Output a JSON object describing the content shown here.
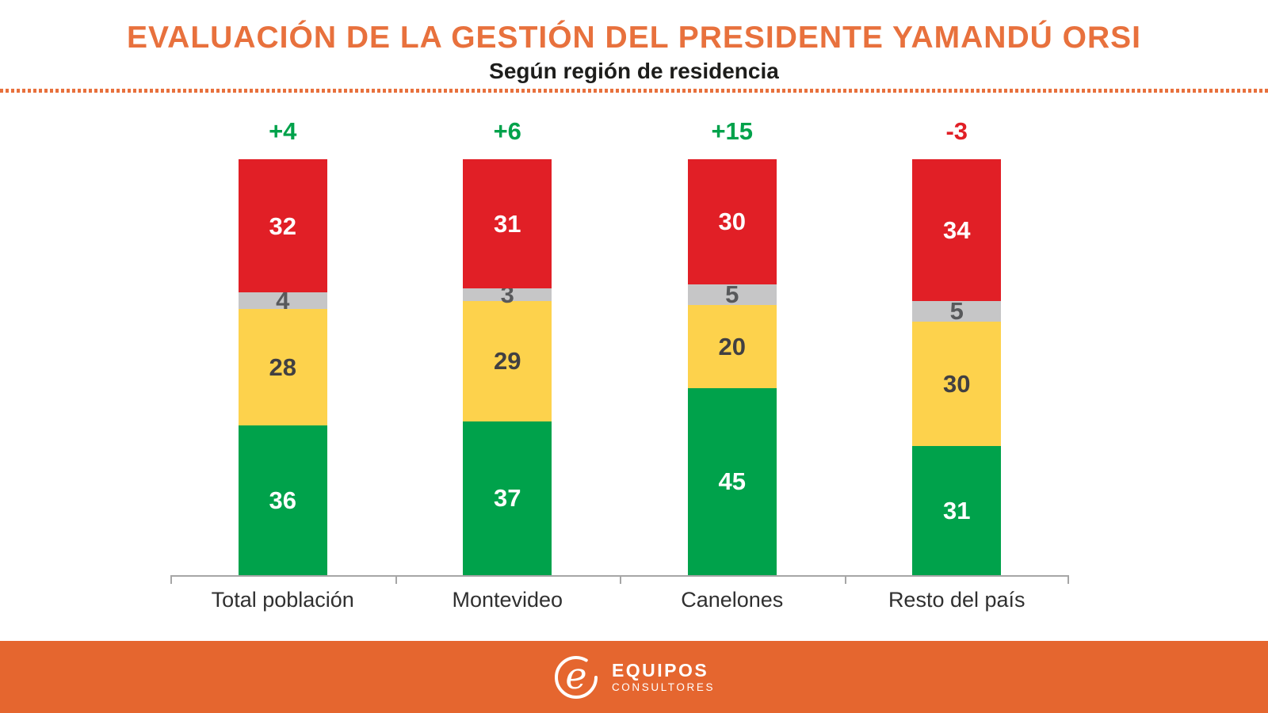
{
  "title": "EVALUACIÓN DE LA GESTIÓN DEL PRESIDENTE YAMANDÚ ORSI",
  "subtitle": "Según región de residencia",
  "colors": {
    "accent_orange_title": "#E8713D",
    "footer_orange": "#E5662F",
    "bar_red": "#E11F26",
    "bar_gray": "#C6C6C7",
    "bar_yellow": "#FDD24C",
    "bar_green": "#00A24B",
    "net_positive": "#00A24B",
    "net_negative": "#E11F26",
    "axis_gray": "#A6A6A6"
  },
  "chart_data": {
    "type": "bar",
    "stacked": true,
    "unit": "%",
    "ylim": [
      0,
      100
    ],
    "grid": false,
    "legend": "none",
    "categories": [
      "Total población",
      "Montevideo",
      "Canelones",
      "Resto del país"
    ],
    "net_labels": [
      {
        "text": "+4",
        "color": "#00A24B"
      },
      {
        "text": "+6",
        "color": "#00A24B"
      },
      {
        "text": "+15",
        "color": "#00A24B"
      },
      {
        "text": "-3",
        "color": "#E11F26"
      }
    ],
    "series_order_bottom_to_top": [
      "green",
      "yellow",
      "gray",
      "red"
    ],
    "series": [
      {
        "key": "green",
        "color": "#00A24B",
        "label_color": "#FFFFFF",
        "values": [
          36,
          37,
          45,
          31
        ]
      },
      {
        "key": "yellow",
        "color": "#FDD24C",
        "label_color": "#414042",
        "values": [
          28,
          29,
          20,
          30
        ]
      },
      {
        "key": "gray",
        "color": "#C6C6C7",
        "label_color": "#58595B",
        "values": [
          4,
          3,
          5,
          5
        ]
      },
      {
        "key": "red",
        "color": "#E11F26",
        "label_color": "#FFFFFF",
        "values": [
          32,
          31,
          30,
          34
        ]
      }
    ]
  },
  "footer": {
    "brand_name": "EQUIPOS",
    "brand_subtitle": "CONSULTORES"
  }
}
